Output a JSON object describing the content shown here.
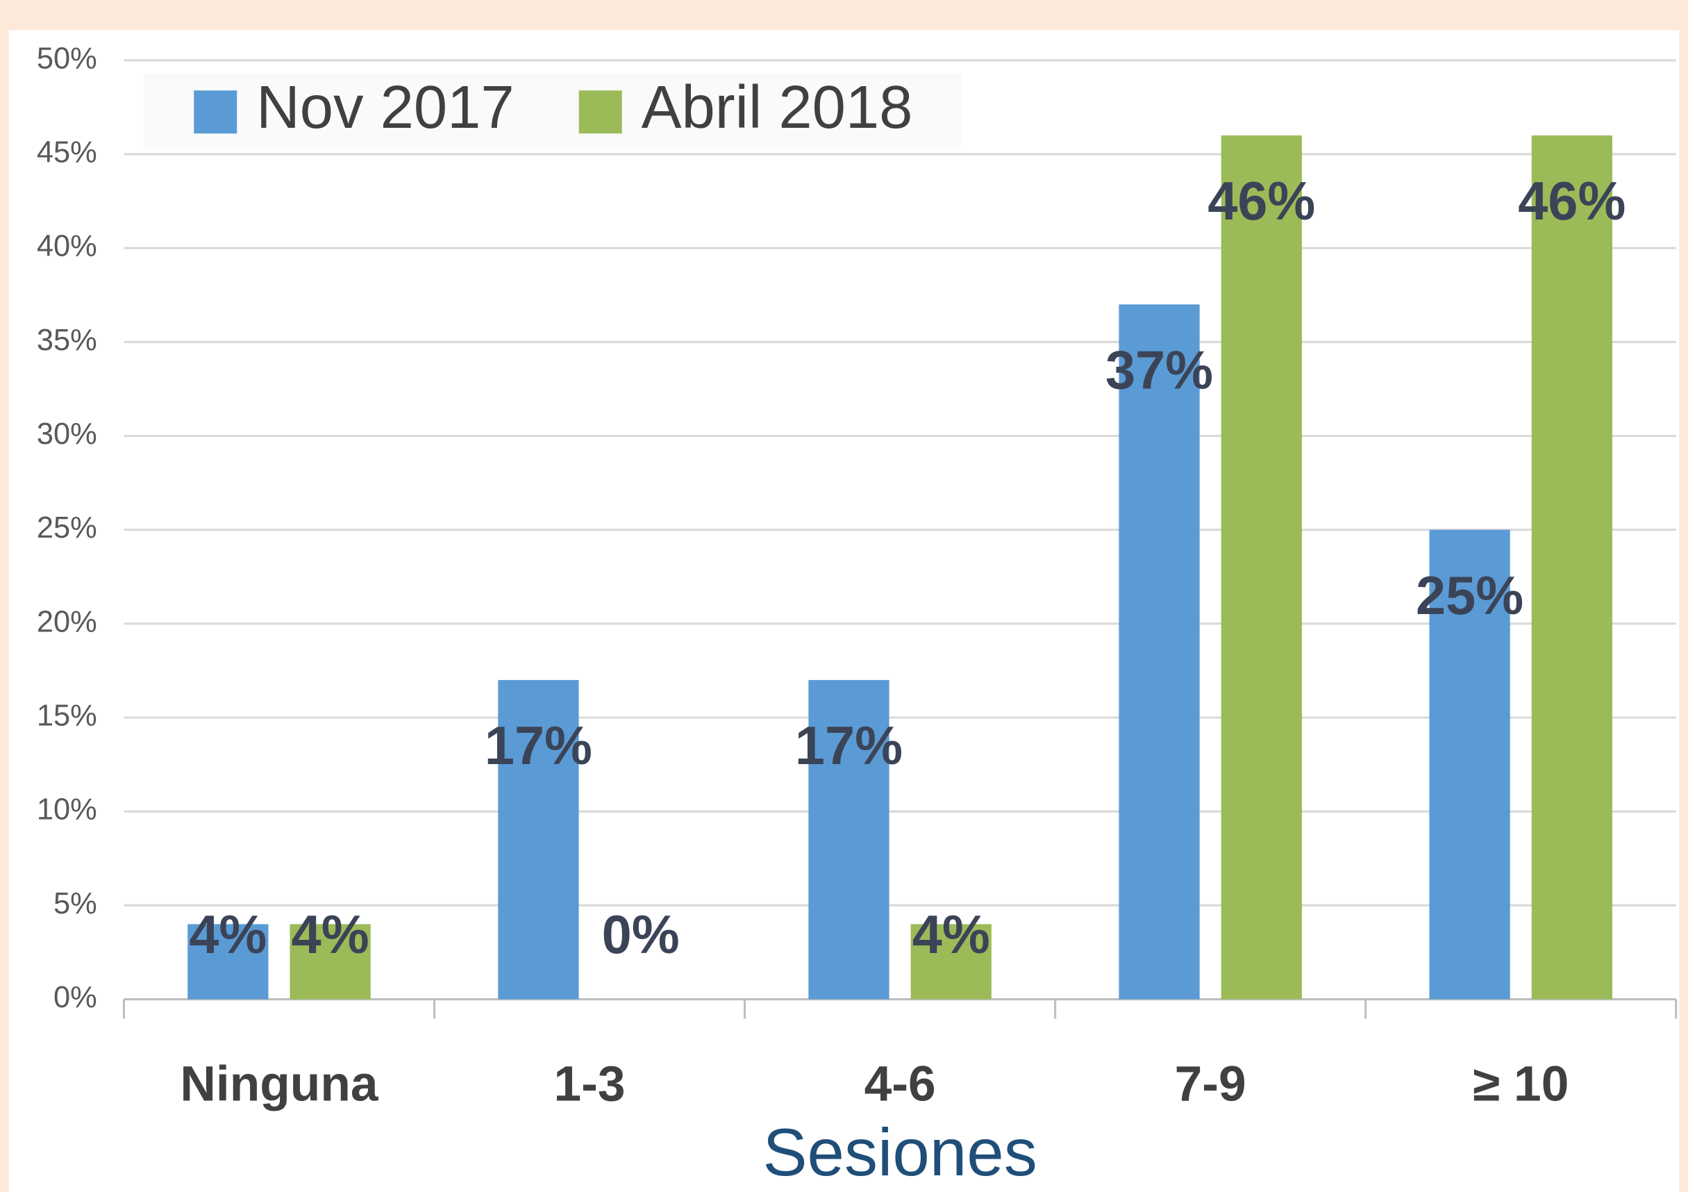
{
  "chart_data": {
    "type": "bar",
    "categories": [
      "Ninguna",
      "1-3",
      "4-6",
      "7-9",
      "≥ 10"
    ],
    "series": [
      {
        "name": "Nov 2017",
        "color": "#5b9bd5",
        "values": [
          4,
          17,
          17,
          37,
          25
        ],
        "value_labels": [
          "4%",
          "17%",
          "17%",
          "37%",
          "25%"
        ]
      },
      {
        "name": "Abril 2018",
        "color": "#9bbb59",
        "values": [
          4,
          0,
          4,
          46,
          46
        ],
        "value_labels": [
          "4%",
          "0%",
          "4%",
          "46%",
          "46%"
        ]
      }
    ],
    "xlabel": "Sesiones",
    "ylim": [
      0,
      50
    ],
    "yticks": [
      {
        "value": 0,
        "label": "0%"
      },
      {
        "value": 5,
        "label": "5%"
      },
      {
        "value": 10,
        "label": "10%"
      },
      {
        "value": 15,
        "label": "15%"
      },
      {
        "value": 20,
        "label": "20%"
      },
      {
        "value": 25,
        "label": "25%"
      },
      {
        "value": 30,
        "label": "30%"
      },
      {
        "value": 35,
        "label": "35%"
      },
      {
        "value": 40,
        "label": "40%"
      },
      {
        "value": 45,
        "label": "45%"
      },
      {
        "value": 50,
        "label": "50%"
      }
    ],
    "grid": true,
    "legend": "top-left"
  }
}
